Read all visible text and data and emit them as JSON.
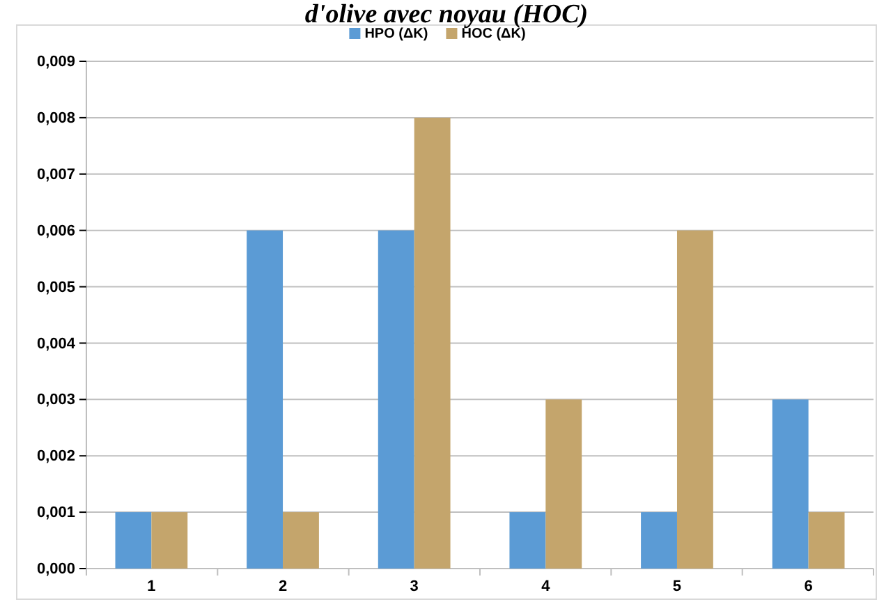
{
  "chart_data": {
    "type": "bar",
    "title": "d'olive avec noyau (HOC)",
    "categories": [
      "1",
      "2",
      "3",
      "4",
      "5",
      "6"
    ],
    "series": [
      {
        "name": "HPO (ΔK)",
        "color": "#5b9bd5",
        "values": [
          0.001,
          0.006,
          0.006,
          0.001,
          0.001,
          0.003
        ]
      },
      {
        "name": "HOC (ΔK)",
        "color": "#c4a56c",
        "values": [
          0.001,
          0.001,
          0.008,
          0.003,
          0.006,
          0.001
        ]
      }
    ],
    "ylim": [
      0,
      0.009
    ],
    "yticks": [
      {
        "value": 0,
        "label": "0,000"
      },
      {
        "value": 0.001,
        "label": "0,001"
      },
      {
        "value": 0.002,
        "label": "0,002"
      },
      {
        "value": 0.003,
        "label": "0,003"
      },
      {
        "value": 0.004,
        "label": "0,004"
      },
      {
        "value": 0.005,
        "label": "0,005"
      },
      {
        "value": 0.006,
        "label": "0,006"
      },
      {
        "value": 0.007,
        "label": "0,007"
      },
      {
        "value": 0.008,
        "label": "0,008"
      },
      {
        "value": 0.009,
        "label": "0,009"
      }
    ],
    "grid": "y",
    "legend": "top"
  }
}
